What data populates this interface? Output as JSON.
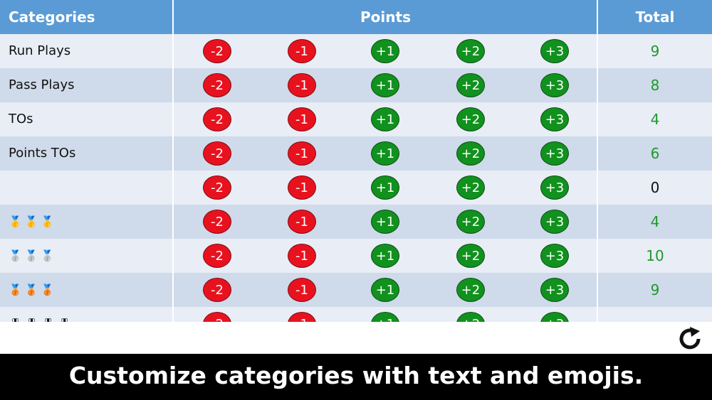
{
  "header": {
    "categories_label": "Categories",
    "points_label": "Points",
    "total_label": "Total"
  },
  "colors": {
    "header_bg": "#5b9bd5",
    "negative_button": "#e8121f",
    "positive_button": "#11911e",
    "total_positive_text": "#1e9a2a",
    "total_zero_text": "#111111",
    "caption_bg": "#000000"
  },
  "point_buttons": [
    "-2",
    "-1",
    "+1",
    "+2",
    "+3"
  ],
  "rows": [
    {
      "category": "Run Plays",
      "type": "text",
      "total": "9"
    },
    {
      "category": "Pass Plays",
      "type": "text",
      "total": "8"
    },
    {
      "category": "TOs",
      "type": "text",
      "total": "4"
    },
    {
      "category": "Points TOs",
      "type": "text",
      "total": "6"
    },
    {
      "category": "",
      "type": "text",
      "total": "0"
    },
    {
      "category": "🥇🥇🥇",
      "type": "emoji",
      "total": "4"
    },
    {
      "category": "🥈🥈🥈",
      "type": "emoji",
      "total": "10"
    },
    {
      "category": "🥉🥉🥉",
      "type": "emoji",
      "total": "9"
    },
    {
      "category": "🎖🎖🎖🎖",
      "type": "emoji",
      "total": ""
    }
  ],
  "toolbar": {
    "reset_icon": "refresh-icon"
  },
  "caption": "Customize categories with text and emojis."
}
